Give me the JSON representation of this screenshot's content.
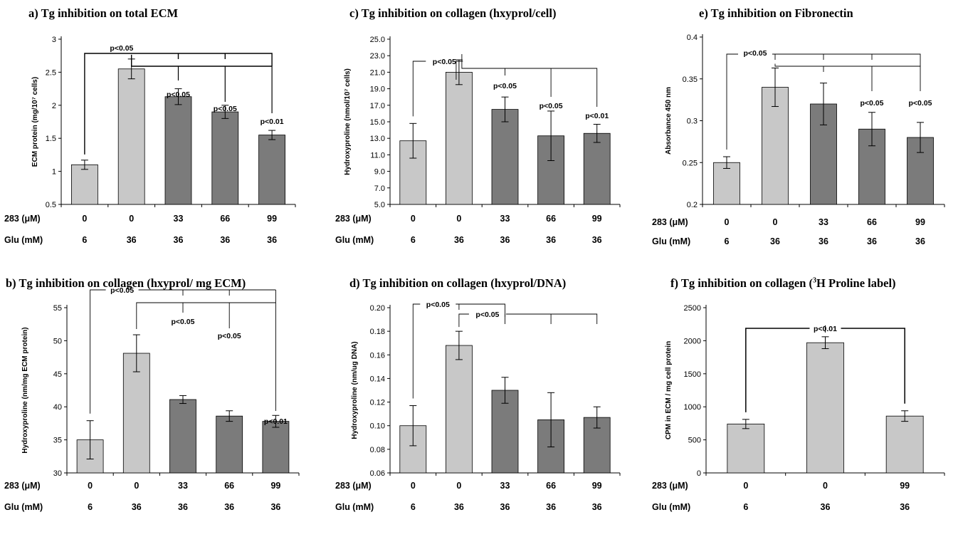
{
  "chart_data": [
    {
      "id": "a",
      "type": "bar",
      "title": "a) Tg inhibition on total ECM",
      "ylabel": "ECM protein (mg/10⁷ cells)",
      "ylim": [
        0.5,
        3
      ],
      "yticks": [
        "0.5",
        "1",
        "1.5",
        "2",
        "2.5",
        "3"
      ],
      "row_labels": [
        "283 (μM)",
        "Glu (mM)"
      ],
      "dose_283": [
        "0",
        "0",
        "33",
        "66",
        "99"
      ],
      "glu": [
        "6",
        "36",
        "36",
        "36",
        "36"
      ],
      "values": [
        1.1,
        2.55,
        2.13,
        1.9,
        1.55
      ],
      "errors": [
        0.07,
        0.15,
        0.12,
        0.1,
        0.07
      ],
      "bar_colors": [
        "#c8c8c8",
        "#c8c8c8",
        "#7b7b7b",
        "#7b7b7b",
        "#7b7b7b"
      ],
      "annotations": [
        "p<0.05",
        "p<0.05",
        "p<0.05",
        "p<0.01"
      ]
    },
    {
      "id": "b",
      "type": "bar",
      "title": "b) Tg inhibition on collagen (hxyprol/ mg ECM)",
      "ylabel": "Hydroxyproline (nm/mg ECM protein)",
      "ylim": [
        30,
        55
      ],
      "yticks": [
        "30",
        "35",
        "40",
        "45",
        "50",
        "55"
      ],
      "row_labels": [
        "283 (μM)",
        "Glu (mM)"
      ],
      "dose_283": [
        "0",
        "0",
        "33",
        "66",
        "99"
      ],
      "glu": [
        "6",
        "36",
        "36",
        "36",
        "36"
      ],
      "values": [
        35,
        48.1,
        41.1,
        38.6,
        37.8
      ],
      "errors": [
        2.9,
        2.8,
        0.6,
        0.8,
        0.9
      ],
      "bar_colors": [
        "#c8c8c8",
        "#c8c8c8",
        "#7b7b7b",
        "#7b7b7b",
        "#7b7b7b"
      ],
      "annotations": [
        "p<0.05",
        "p<0.05",
        "p<0.05",
        "p<0.01"
      ]
    },
    {
      "id": "c",
      "type": "bar",
      "title": "c) Tg inhibition on collagen (hxyprol/cell)",
      "ylabel": "Hydroxyproline (nmol/10⁷ cells)",
      "ylim": [
        5,
        25
      ],
      "yticks": [
        "5.0",
        "7.0",
        "9.0",
        "11.0",
        "13.0",
        "15.0",
        "17.0",
        "19.0",
        "21.0",
        "23.0",
        "25.0"
      ],
      "row_labels": [
        "283 (μM)",
        "Glu (mM)"
      ],
      "dose_283": [
        "0",
        "0",
        "33",
        "66",
        "99"
      ],
      "glu": [
        "6",
        "36",
        "36",
        "36",
        "36"
      ],
      "values": [
        12.7,
        21.0,
        16.5,
        13.3,
        13.6
      ],
      "errors": [
        2.1,
        1.5,
        1.5,
        3.0,
        1.1
      ],
      "bar_colors": [
        "#c8c8c8",
        "#c8c8c8",
        "#7b7b7b",
        "#7b7b7b",
        "#7b7b7b"
      ],
      "annotations": [
        "p<0.05",
        "p<0.05",
        "p<0.05",
        "p<0.01"
      ]
    },
    {
      "id": "d",
      "type": "bar",
      "title": "d) Tg inhibition on collagen (hxyprol/DNA)",
      "ylabel": "Hydroxyproline (nm/ug DNA)",
      "ylim": [
        0.06,
        0.2
      ],
      "yticks": [
        "0.06",
        "0.08",
        "0.10",
        "0.12",
        "0.14",
        "0.16",
        "0.18",
        "0.20"
      ],
      "row_labels": [
        "283 (μM)",
        "Glu (mM)"
      ],
      "dose_283": [
        "0",
        "0",
        "33",
        "66",
        "99"
      ],
      "glu": [
        "6",
        "36",
        "36",
        "36",
        "36"
      ],
      "values": [
        0.1,
        0.168,
        0.13,
        0.105,
        0.107
      ],
      "errors": [
        0.017,
        0.012,
        0.011,
        0.023,
        0.009
      ],
      "bar_colors": [
        "#c8c8c8",
        "#c8c8c8",
        "#7b7b7b",
        "#7b7b7b",
        "#7b7b7b"
      ],
      "annotations": [
        "p<0.05",
        "p<0.05"
      ]
    },
    {
      "id": "e",
      "type": "bar",
      "title": "e) Tg inhibition on Fibronectin",
      "ylabel": "Absorbance 450 nm",
      "ylim": [
        0.2,
        0.4
      ],
      "yticks": [
        "0.2",
        "0.25",
        "0.3",
        "0.35",
        "0.4"
      ],
      "row_labels": [
        "283 (μM)",
        "Glu (mM)"
      ],
      "dose_283": [
        "0",
        "0",
        "33",
        "66",
        "99"
      ],
      "glu": [
        "6",
        "36",
        "36",
        "36",
        "36"
      ],
      "values": [
        0.25,
        0.34,
        0.32,
        0.29,
        0.28
      ],
      "errors": [
        0.007,
        0.023,
        0.025,
        0.02,
        0.018
      ],
      "bar_colors": [
        "#c8c8c8",
        "#c8c8c8",
        "#7b7b7b",
        "#7b7b7b",
        "#7b7b7b"
      ],
      "annotations": [
        "p<0.05",
        "p<0.05",
        "p<0.05"
      ]
    },
    {
      "id": "f",
      "type": "bar",
      "title_pre": "f) Tg inhibition on collagen (",
      "title_sup": "3",
      "title_post": "H Proline label)",
      "ylabel": "CPM in ECM / mg cell protein",
      "ylim": [
        0,
        2500
      ],
      "yticks": [
        "0",
        "500",
        "1000",
        "1500",
        "2000",
        "2500"
      ],
      "row_labels": [
        "283 (μM)",
        "Glu (mM)"
      ],
      "dose_283": [
        "0",
        "0",
        "99"
      ],
      "glu": [
        "6",
        "36",
        "36"
      ],
      "values": [
        740,
        1970,
        860
      ],
      "errors": [
        70,
        90,
        80
      ],
      "bar_colors": [
        "#c8c8c8",
        "#c8c8c8",
        "#c8c8c8"
      ],
      "annotations": [
        "p<0.01"
      ]
    }
  ]
}
